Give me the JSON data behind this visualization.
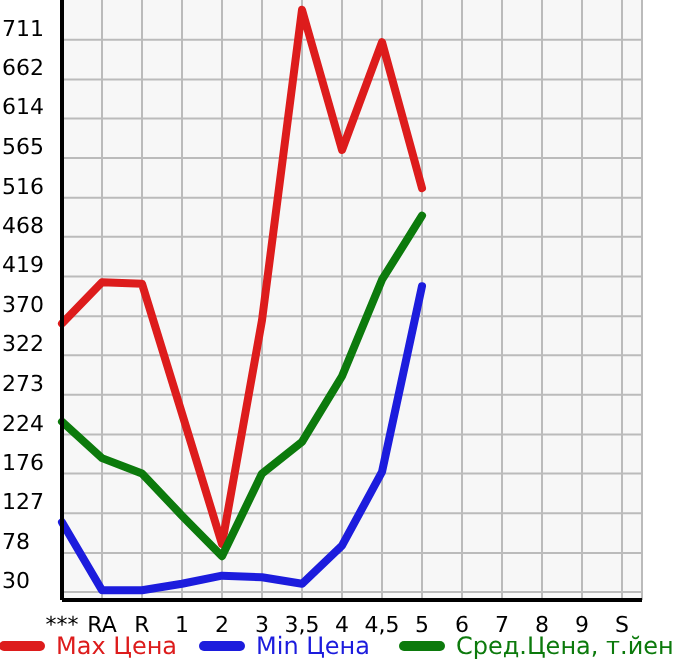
{
  "chart_data": {
    "type": "line",
    "categories": [
      "***",
      "RA",
      "R",
      "1",
      "2",
      "3",
      "3,5",
      "4",
      "4,5",
      "5",
      "6",
      "7",
      "8",
      "9",
      "S"
    ],
    "series": [
      {
        "name": "Max Цена",
        "color": "#dd1c1c",
        "values": [
          361,
          412,
          410,
          250,
          89,
          365,
          748,
          575,
          708,
          528,
          null,
          null,
          null,
          null,
          null
        ]
      },
      {
        "name": "Min Цена",
        "color": "#1c1cdd",
        "values": [
          116,
          32,
          32,
          40,
          50,
          48,
          40,
          87,
          178,
          407,
          null,
          null,
          null,
          null,
          null
        ]
      },
      {
        "name": "Сред.Цена, т.йен",
        "color": "#0c7a0c",
        "values": [
          240,
          195,
          176,
          124,
          74,
          176,
          215,
          296,
          415,
          494,
          null,
          null,
          null,
          null,
          null
        ]
      }
    ],
    "ylim": [
      20,
      760
    ],
    "yticks": [
      30,
      78,
      127,
      176,
      224,
      273,
      322,
      370,
      419,
      468,
      516,
      565,
      614,
      662,
      711
    ],
    "grid": true,
    "legend": "bottom",
    "marker": "none",
    "line_style": "solid"
  }
}
